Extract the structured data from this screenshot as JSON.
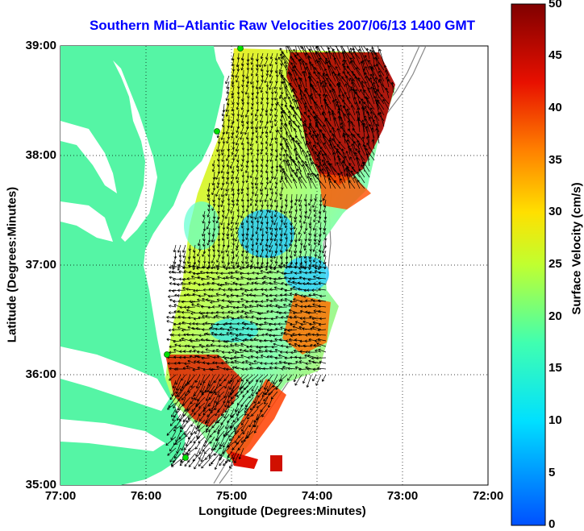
{
  "title": "Southern Mid–Atlantic Raw Velocities 2007/06/13 1400 GMT",
  "axes": {
    "xlabel": "Longitude (Degrees:Minutes)",
    "ylabel": "Latitude (Degrees:Minutes)",
    "xticks": [
      "77:00",
      "76:00",
      "75:00",
      "74:00",
      "73:00",
      "72:00"
    ],
    "yticks": [
      "39:00",
      "38:00",
      "37:00",
      "36:00",
      "35:00"
    ]
  },
  "colorbar": {
    "label": "Surface Velocity (cm/s)",
    "ticks": [
      "50",
      "45",
      "40",
      "35",
      "30",
      "25",
      "20",
      "15",
      "10",
      "5",
      "0"
    ],
    "range": [
      0,
      50
    ]
  },
  "colors": {
    "title": "#0000ff",
    "land": "#55f5a5",
    "water": "#ffffff"
  },
  "grid": "dotted",
  "extent": {
    "lon": [
      -77,
      -72
    ],
    "lat": [
      35,
      39
    ]
  }
}
